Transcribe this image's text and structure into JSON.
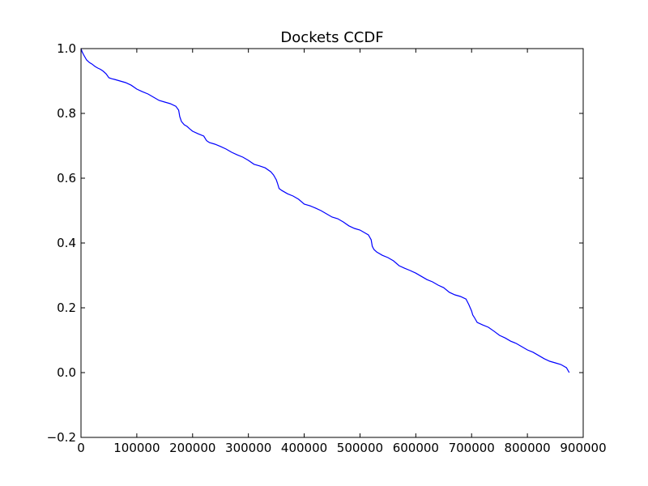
{
  "chart_data": {
    "type": "line",
    "title": "Dockets CCDF",
    "xlabel": "",
    "ylabel": "",
    "xlim": [
      0,
      900000
    ],
    "ylim": [
      -0.2,
      1.0
    ],
    "grid": false,
    "xticks": [
      0,
      100000,
      200000,
      300000,
      400000,
      500000,
      600000,
      700000,
      800000,
      900000
    ],
    "xtick_labels": [
      "0",
      "100000",
      "200000",
      "300000",
      "400000",
      "500000",
      "600000",
      "700000",
      "800000",
      "900000"
    ],
    "yticks": [
      -0.2,
      0.0,
      0.2,
      0.4,
      0.6,
      0.8,
      1.0
    ],
    "ytick_labels": [
      "−0.2",
      "0.0",
      "0.2",
      "0.4",
      "0.6",
      "0.8",
      "1.0"
    ],
    "line_color": "#0000ff",
    "series": [
      {
        "x": [
          0,
          2000,
          5000,
          10000,
          15000,
          20000,
          25000,
          30000,
          35000,
          40000,
          45000,
          50000,
          55000,
          60000,
          70000,
          80000,
          90000,
          100000,
          110000,
          120000,
          130000,
          140000,
          150000,
          160000,
          170000,
          175000,
          177000,
          180000,
          185000,
          190000,
          195000,
          200000,
          210000,
          220000,
          225000,
          230000,
          240000,
          250000,
          260000,
          270000,
          280000,
          290000,
          300000,
          310000,
          320000,
          330000,
          340000,
          345000,
          350000,
          352000,
          355000,
          360000,
          370000,
          380000,
          390000,
          400000,
          410000,
          420000,
          430000,
          440000,
          450000,
          460000,
          470000,
          480000,
          490000,
          500000,
          510000,
          515000,
          520000,
          522000,
          525000,
          530000,
          540000,
          550000,
          560000,
          570000,
          580000,
          590000,
          600000,
          610000,
          620000,
          630000,
          640000,
          650000,
          660000,
          670000,
          680000,
          690000,
          695000,
          700000,
          702000,
          705000,
          710000,
          720000,
          730000,
          740000,
          750000,
          760000,
          770000,
          780000,
          790000,
          800000,
          810000,
          820000,
          830000,
          840000,
          850000,
          860000,
          870000,
          875000
        ],
        "y": [
          1.0,
          0.99,
          0.98,
          0.965,
          0.957,
          0.952,
          0.945,
          0.94,
          0.936,
          0.93,
          0.922,
          0.91,
          0.907,
          0.905,
          0.9,
          0.895,
          0.887,
          0.875,
          0.867,
          0.86,
          0.85,
          0.84,
          0.835,
          0.83,
          0.822,
          0.81,
          0.79,
          0.775,
          0.765,
          0.76,
          0.752,
          0.745,
          0.737,
          0.73,
          0.716,
          0.71,
          0.705,
          0.698,
          0.69,
          0.68,
          0.672,
          0.665,
          0.655,
          0.643,
          0.638,
          0.632,
          0.62,
          0.61,
          0.595,
          0.585,
          0.568,
          0.562,
          0.552,
          0.545,
          0.535,
          0.52,
          0.515,
          0.508,
          0.5,
          0.49,
          0.48,
          0.475,
          0.465,
          0.453,
          0.445,
          0.44,
          0.43,
          0.425,
          0.41,
          0.39,
          0.38,
          0.372,
          0.362,
          0.355,
          0.345,
          0.33,
          0.322,
          0.315,
          0.307,
          0.297,
          0.287,
          0.28,
          0.27,
          0.262,
          0.248,
          0.24,
          0.235,
          0.227,
          0.21,
          0.19,
          0.178,
          0.17,
          0.155,
          0.147,
          0.14,
          0.128,
          0.115,
          0.107,
          0.097,
          0.09,
          0.08,
          0.07,
          0.063,
          0.053,
          0.043,
          0.035,
          0.03,
          0.025,
          0.015,
          0.0
        ]
      }
    ]
  }
}
